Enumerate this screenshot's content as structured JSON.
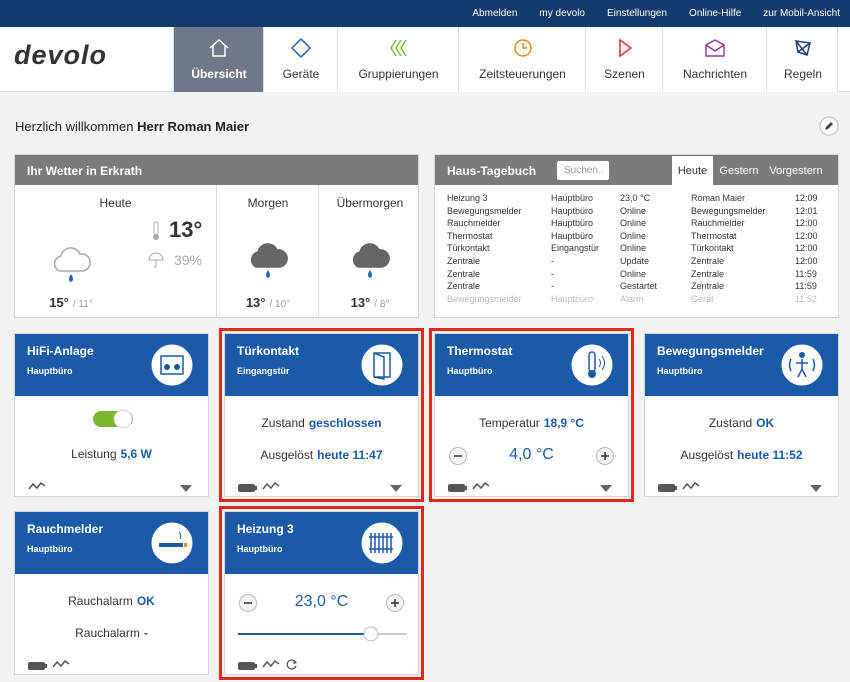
{
  "top_links": [
    "Abmelden",
    "my devolo",
    "Einstellungen",
    "Online-Hilfe",
    "zur Mobil-Ansicht"
  ],
  "logo": "devolo",
  "nav": [
    {
      "label": "Übersicht",
      "active": true
    },
    {
      "label": "Geräte",
      "active": false
    },
    {
      "label": "Gruppierungen",
      "active": false
    },
    {
      "label": "Zeitsteuerungen",
      "active": false
    },
    {
      "label": "Szenen",
      "active": false
    },
    {
      "label": "Nachrichten",
      "active": false
    },
    {
      "label": "Regeln",
      "active": false
    }
  ],
  "greeting": {
    "text": "Herzlich willkommen",
    "name": "Herr Roman Maier"
  },
  "weather": {
    "title": "Ihr Wetter in Erkrath",
    "current_temp": "13°",
    "rain_chance": "39%",
    "days": [
      {
        "label": "Heute",
        "high": "15°",
        "low": "/ 11°"
      },
      {
        "label": "Morgen",
        "high": "13°",
        "low": "/ 10°"
      },
      {
        "label": "Übermorgen",
        "high": "13°",
        "low": "/ 8°"
      }
    ]
  },
  "diary": {
    "title": "Haus-Tagebuch",
    "search_placeholder": "Suchen..",
    "tabs": [
      {
        "label": "Heute",
        "active": true
      },
      {
        "label": "Gestern",
        "active": false
      },
      {
        "label": "Vorgestern",
        "active": false
      }
    ],
    "rows": [
      [
        "Heizung 3",
        "Hauptbüro",
        "23,0 °C",
        "Roman Maier",
        "12:09"
      ],
      [
        "Bewegungsmelder",
        "Hauptbüro",
        "Online",
        "Bewegungsmelder",
        "12:01"
      ],
      [
        "Rauchmelder",
        "Hauptbüro",
        "Online",
        "Rauchmelder",
        "12:00"
      ],
      [
        "Thermostat",
        "Hauptbüro",
        "Online",
        "Thermostat",
        "12:00"
      ],
      [
        "Türkontakt",
        "Eingangstür",
        "Online",
        "Türkontakt",
        "12:00"
      ],
      [
        "Zentrale",
        "-",
        "Update",
        "Zentrale",
        "12:00"
      ],
      [
        "Zentrale",
        "-",
        "Online",
        "Zentrale",
        "11:59"
      ],
      [
        "Zentrale",
        "-",
        "Gestartet",
        "Zentrale",
        "11:59"
      ],
      [
        "Bewegungsmelder",
        "Hauptbüro",
        "Alarm",
        "Gerät",
        "11:52"
      ]
    ]
  },
  "cards": [
    {
      "title": "HiFi-Anlage",
      "room": "Hauptbüro",
      "highlighted": false,
      "toggle": true,
      "lines": [
        {
          "label": "Leistung",
          "value": "5,6 W"
        }
      ],
      "battery": false,
      "dropdown": true
    },
    {
      "title": "Türkontakt",
      "room": "Eingangstür",
      "highlighted": true,
      "lines": [
        {
          "label": "Zustand",
          "value": "geschlossen"
        },
        {
          "label": "Ausgelöst",
          "value": "heute 11:47"
        }
      ],
      "battery": true,
      "dropdown": true
    },
    {
      "title": "Thermostat",
      "room": "Hauptbüro",
      "highlighted": true,
      "lines": [
        {
          "label": "Temperatur",
          "value": "18,9 °C"
        }
      ],
      "setpoint": "4,0 °C",
      "battery": true,
      "dropdown": true
    },
    {
      "title": "Bewegungsmelder",
      "room": "Hauptbüro",
      "highlighted": false,
      "lines": [
        {
          "label": "Zustand",
          "value": "OK"
        },
        {
          "label": "Ausgelöst",
          "value": "heute 11:52"
        }
      ],
      "battery": true,
      "dropdown": true
    },
    {
      "title": "Rauchmelder",
      "room": "Hauptbüro",
      "highlighted": false,
      "lines": [
        {
          "label": "Rauchalarm",
          "value": "OK"
        },
        {
          "label": "Rauchalarm",
          "value": "-"
        }
      ],
      "battery": true,
      "dropdown": false
    },
    {
      "title": "Heizung 3",
      "room": "Hauptbüro",
      "highlighted": true,
      "setpoint": "23,0 °C",
      "slider": true,
      "battery": true,
      "dropdown": false,
      "refresh": true
    }
  ]
}
